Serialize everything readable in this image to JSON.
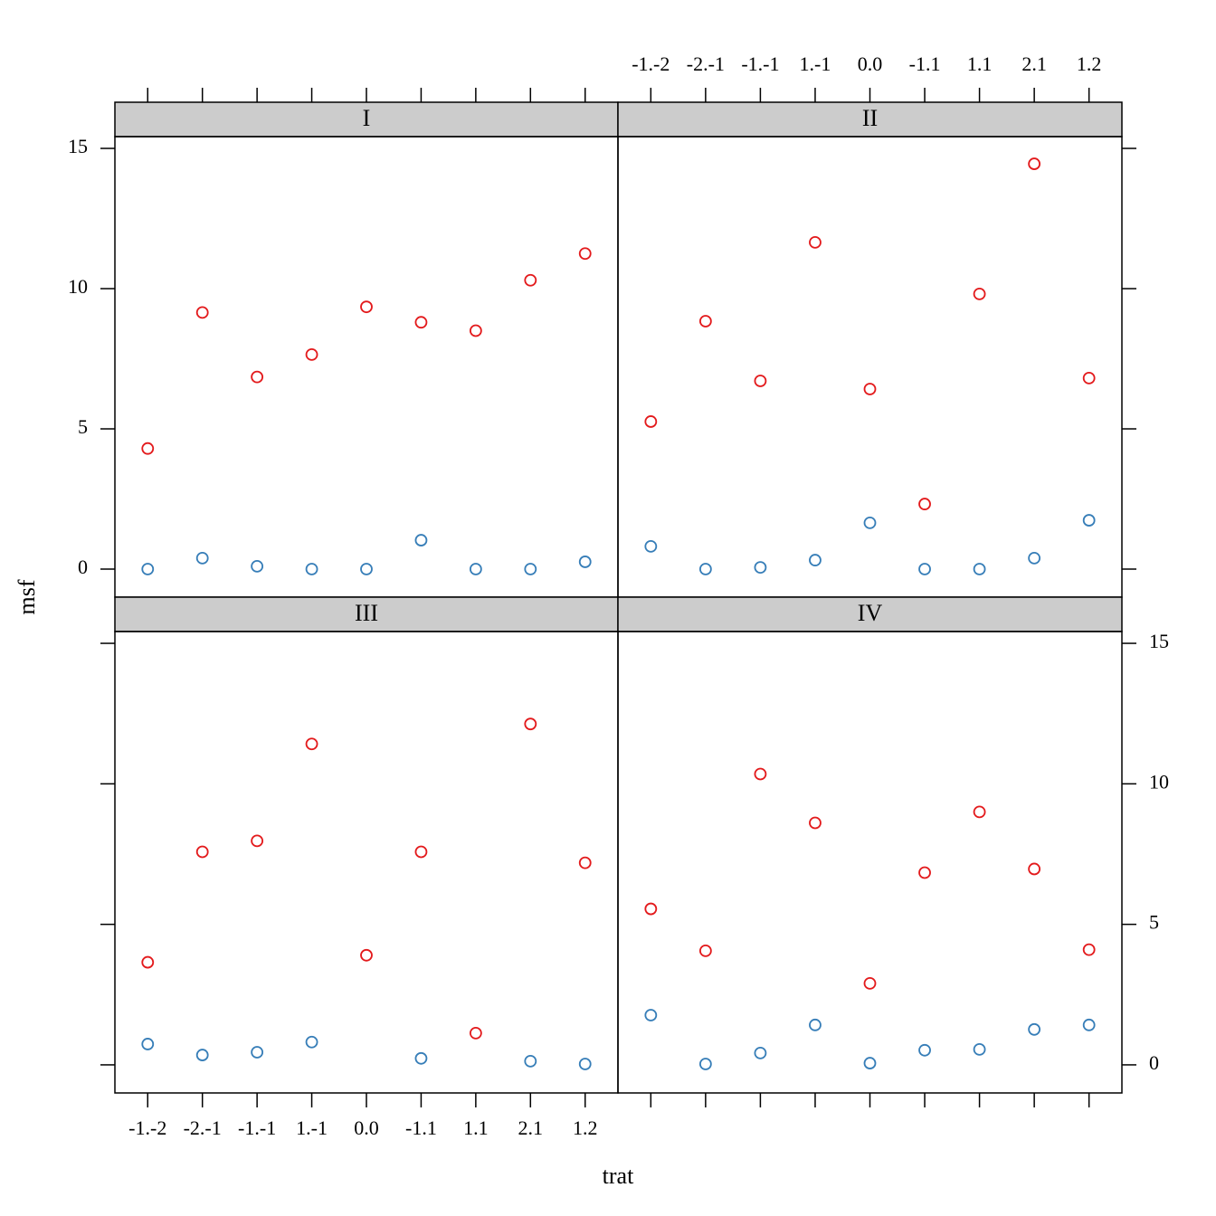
{
  "xlabel": "trat",
  "ylabel": "msf",
  "chart_data": [
    {
      "type": "scatter",
      "title": "I",
      "categories": [
        "-1.-2",
        "-2.-1",
        "-1.-1",
        "1.-1",
        "0.0",
        "-1.1",
        "1.1",
        "2.1",
        "1.2"
      ],
      "series": [
        {
          "color": "#e31a1c",
          "values": [
            4.3,
            9.15,
            6.85,
            7.65,
            9.35,
            8.8,
            8.5,
            10.3,
            11.25
          ]
        },
        {
          "color": "#377eb8",
          "values": [
            0,
            0.39,
            0.1,
            0,
            0,
            1.03,
            0,
            0,
            0.26
          ]
        }
      ],
      "ylim": [
        -1,
        15.42
      ],
      "yticks": [
        0,
        5,
        10,
        15
      ]
    },
    {
      "type": "scatter",
      "title": "II",
      "categories": [
        "-1.-2",
        "-2.-1",
        "-1.-1",
        "1.-1",
        "0.0",
        "-1.1",
        "1.1",
        "2.1",
        "1.2"
      ],
      "series": [
        {
          "color": "#e31a1c",
          "values": [
            5.26,
            8.84,
            6.71,
            11.65,
            6.42,
            2.32,
            9.81,
            14.45,
            6.81
          ]
        },
        {
          "color": "#377eb8",
          "values": [
            0.81,
            0,
            0.06,
            0.32,
            1.65,
            0,
            0,
            0.39,
            1.74
          ]
        }
      ],
      "ylim": [
        -1,
        15.42
      ],
      "yticks": [
        0,
        5,
        10,
        15
      ]
    },
    {
      "type": "scatter",
      "title": "III",
      "categories": [
        "-1.-2",
        "-2.-1",
        "-1.-1",
        "1.-1",
        "0.0",
        "-1.1",
        "1.1",
        "2.1",
        "1.2"
      ],
      "series": [
        {
          "color": "#e31a1c",
          "values": [
            3.65,
            7.58,
            7.97,
            11.42,
            3.9,
            7.58,
            1.13,
            12.13,
            7.19
          ]
        },
        {
          "color": "#377eb8",
          "values": [
            0.74,
            0.35,
            0.45,
            0.81,
            null,
            0.23,
            null,
            0.13,
            0.03
          ]
        }
      ],
      "ylim": [
        -1,
        15.42
      ],
      "yticks": [
        0,
        5,
        10,
        15
      ]
    },
    {
      "type": "scatter",
      "title": "IV",
      "categories": [
        "-1.-2",
        "-2.-1",
        "-1.-1",
        "1.-1",
        "0.0",
        "-1.1",
        "1.1",
        "2.1",
        "1.2"
      ],
      "series": [
        {
          "color": "#e31a1c",
          "values": [
            5.55,
            4.06,
            10.35,
            8.61,
            2.9,
            6.84,
            9.0,
            6.97,
            4.1
          ]
        },
        {
          "color": "#377eb8",
          "values": [
            1.77,
            0.03,
            0.42,
            1.42,
            0.06,
            0.52,
            0.55,
            1.26,
            1.42
          ]
        }
      ],
      "ylim": [
        -1,
        15.42
      ],
      "yticks": [
        0,
        5,
        10,
        15
      ]
    }
  ]
}
